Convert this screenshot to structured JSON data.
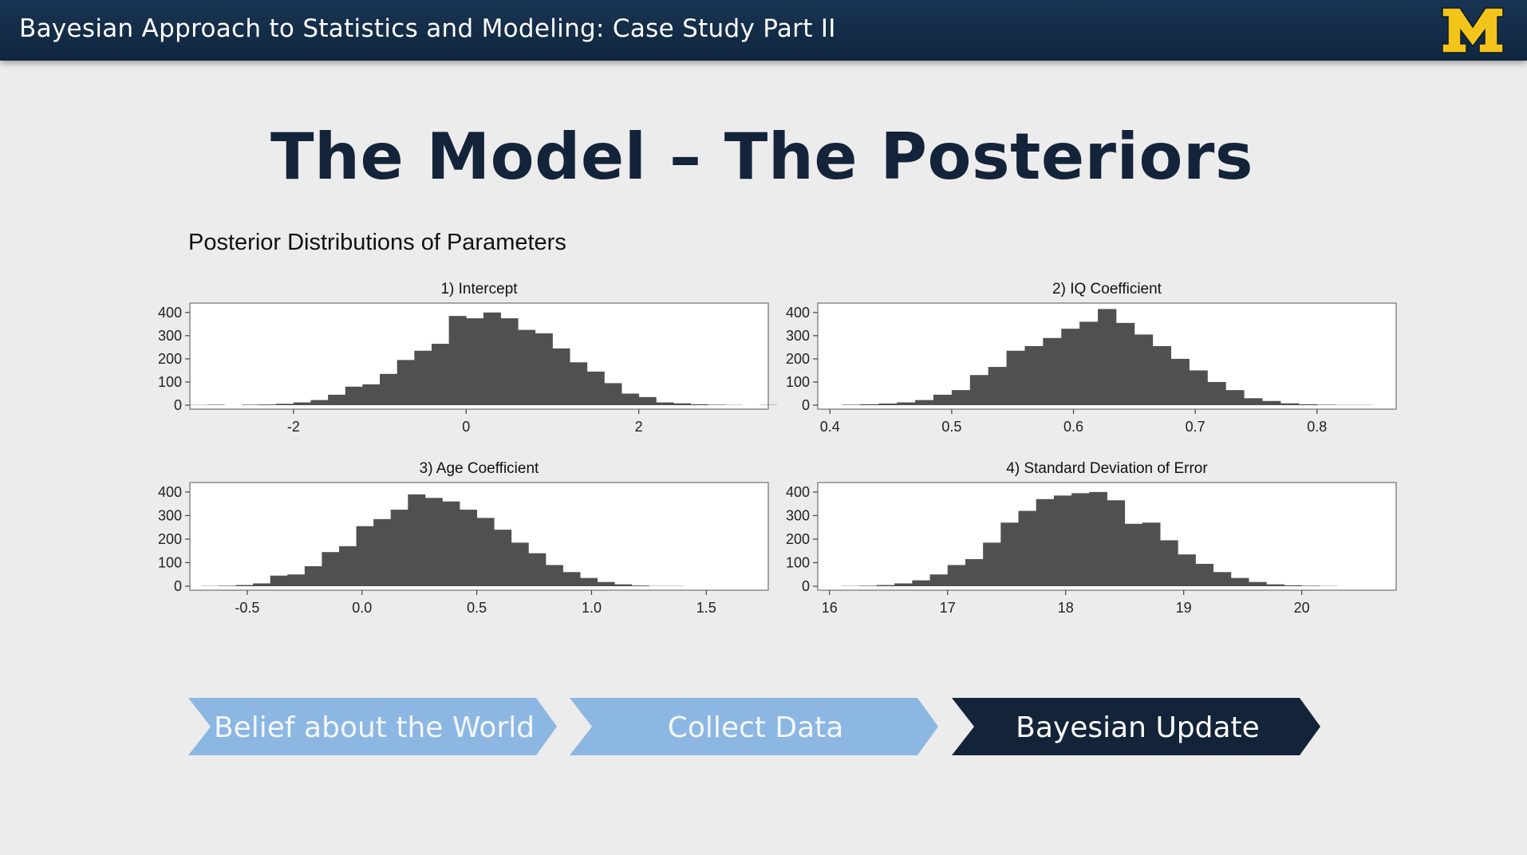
{
  "header": {
    "course_title": "Bayesian Approach to Statistics and Modeling: Case Study Part II",
    "logo_icon": "block-m-logo"
  },
  "slide": {
    "title": "The Model – The Posteriors",
    "subtitle": "Posterior Distributions of Parameters"
  },
  "colors": {
    "bar": "#505050",
    "step_light": "#8cb7e3",
    "step_dark": "#13243a",
    "logo_yellow": "#f3c41a"
  },
  "chart_data": [
    {
      "type": "bar",
      "title": "1) Intercept",
      "xlim": [
        -3.2,
        3.5
      ],
      "ylim": [
        0,
        420
      ],
      "xticks": [
        -2,
        0,
        2
      ],
      "xtick_labels": [
        "-2",
        "0",
        "2"
      ],
      "yticks": [
        0,
        100,
        200,
        300,
        400
      ],
      "bin_start": -3.2,
      "bin_width": 0.2,
      "values": [
        1,
        2,
        0,
        2,
        3,
        6,
        12,
        22,
        45,
        80,
        90,
        135,
        195,
        235,
        265,
        385,
        375,
        400,
        375,
        325,
        310,
        245,
        185,
        145,
        95,
        50,
        35,
        12,
        8,
        4,
        2,
        1,
        0,
        1
      ]
    },
    {
      "type": "bar",
      "title": "2) IQ Coefficient",
      "xlim": [
        0.39,
        0.865
      ],
      "ylim": [
        0,
        420
      ],
      "xticks": [
        0.4,
        0.5,
        0.6,
        0.7,
        0.8
      ],
      "xtick_labels": [
        "0.4",
        "0.5",
        "0.6",
        "0.7",
        "0.8"
      ],
      "yticks": [
        0,
        100,
        200,
        300,
        400
      ],
      "bin_start": 0.41,
      "bin_width": 0.015,
      "values": [
        2,
        4,
        7,
        12,
        22,
        45,
        65,
        130,
        165,
        235,
        255,
        290,
        330,
        360,
        415,
        355,
        305,
        255,
        200,
        150,
        100,
        65,
        30,
        18,
        8,
        4,
        2,
        1,
        1
      ]
    },
    {
      "type": "bar",
      "title": "3) Age Coefficient",
      "xlim": [
        -0.75,
        1.77
      ],
      "ylim": [
        0,
        420
      ],
      "xticks": [
        -0.5,
        0.0,
        0.5,
        1.0,
        1.5
      ],
      "xtick_labels": [
        "-0.5",
        "0.0",
        "0.5",
        "1.0",
        "1.5"
      ],
      "yticks": [
        0,
        100,
        200,
        300,
        400
      ],
      "bin_start": -0.7,
      "bin_width": 0.075,
      "values": [
        1,
        2,
        5,
        12,
        45,
        50,
        85,
        145,
        170,
        255,
        285,
        325,
        390,
        375,
        360,
        325,
        290,
        240,
        185,
        140,
        90,
        60,
        35,
        18,
        8,
        3,
        1,
        1
      ]
    },
    {
      "type": "bar",
      "title": "4) Standard Deviation of Error",
      "xlim": [
        15.9,
        20.8
      ],
      "ylim": [
        0,
        420
      ],
      "xticks": [
        16,
        17,
        18,
        19,
        20
      ],
      "xtick_labels": [
        "16",
        "17",
        "18",
        "19",
        "20"
      ],
      "yticks": [
        0,
        100,
        200,
        300,
        400
      ],
      "bin_start": 16.1,
      "bin_width": 0.15,
      "values": [
        1,
        2,
        5,
        12,
        25,
        50,
        90,
        115,
        185,
        270,
        320,
        370,
        385,
        395,
        400,
        365,
        265,
        270,
        195,
        135,
        95,
        60,
        35,
        18,
        8,
        4,
        2,
        1
      ]
    }
  ],
  "process_steps": [
    {
      "label": "Belief about the World",
      "active": false
    },
    {
      "label": "Collect Data",
      "active": false
    },
    {
      "label": "Bayesian Update",
      "active": true
    }
  ]
}
